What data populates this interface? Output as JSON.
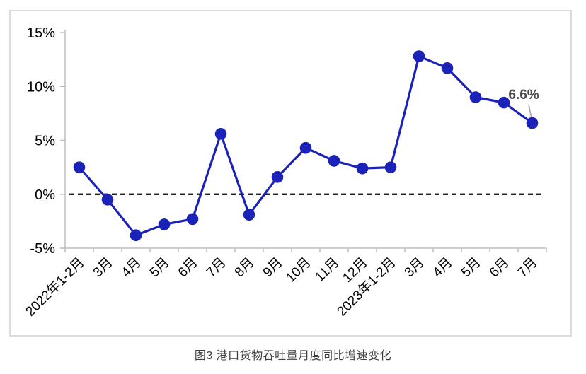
{
  "figure": {
    "caption": "图3 港口货物吞吐量月度同比增速变化"
  },
  "chart_data": {
    "type": "line",
    "title": "图3 港口货物吞吐量月度同比增速变化",
    "categories": [
      "2022年1-2月",
      "3月",
      "4月",
      "5月",
      "6月",
      "7月",
      "8月",
      "9月",
      "10月",
      "11月",
      "12月",
      "2023年1-2月",
      "3月",
      "4月",
      "5月",
      "6月",
      "7月"
    ],
    "values": [
      2.5,
      -0.5,
      -3.8,
      -2.8,
      -2.3,
      5.6,
      -1.9,
      1.6,
      4.3,
      3.1,
      2.4,
      2.5,
      12.8,
      11.7,
      9.0,
      8.5,
      6.6
    ],
    "xlabel": "",
    "ylabel": "",
    "ylim": [
      -5,
      15
    ],
    "yticks": [
      15,
      10,
      5,
      0,
      -5
    ],
    "ytick_labels": [
      "15%",
      "10%",
      "5%",
      "0%",
      "-5%"
    ],
    "grid": false,
    "legend": "none",
    "zero_line": "dashed",
    "annotation": {
      "text": "6.6%",
      "index": 16
    },
    "colors": {
      "line": "#1b22b8",
      "marker": "#1b22b8",
      "axis": "#bfbfbf",
      "tick_label": "#000000",
      "zero_line": "#000000",
      "annotation_text": "#4d4d4d",
      "leader_line": "#a6a6a6",
      "frame_border": "#dcdcdc"
    }
  }
}
